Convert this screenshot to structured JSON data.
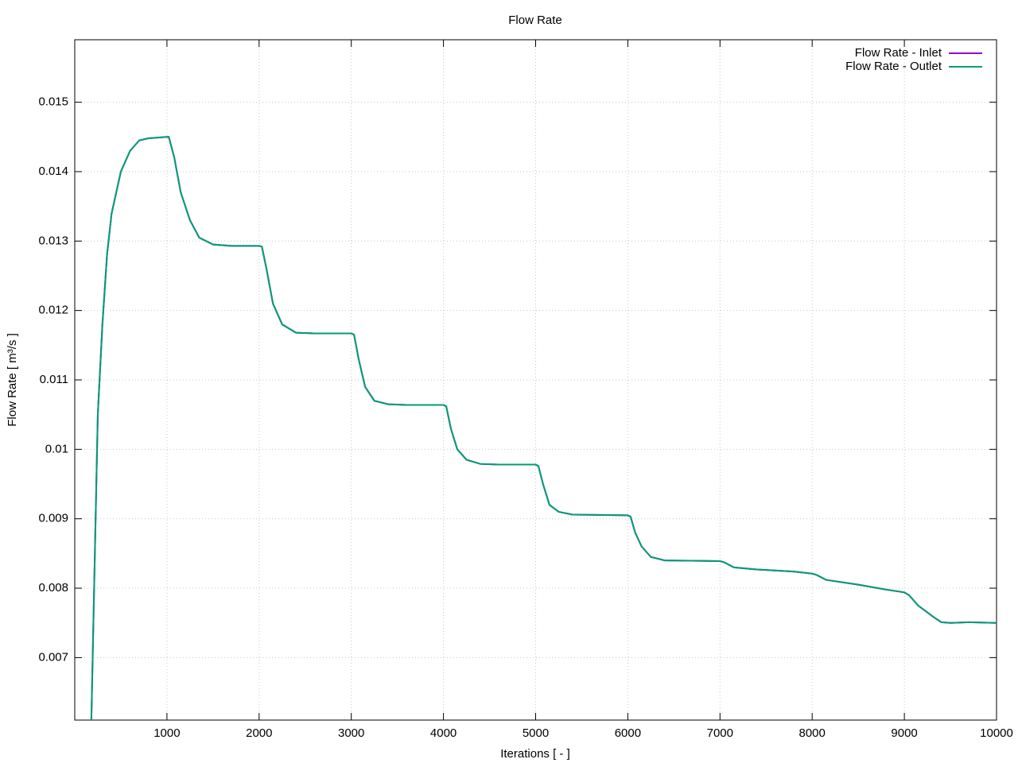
{
  "chart_data": {
    "type": "line",
    "title": "Flow Rate",
    "xlabel": "Iterations [ - ]",
    "ylabel": "Flow Rate [ m³/s ]",
    "x": [
      180,
      250,
      300,
      350,
      400,
      500,
      600,
      700,
      800,
      1000,
      1020,
      1080,
      1150,
      1250,
      1350,
      1500,
      1700,
      2000,
      2030,
      2080,
      2150,
      2250,
      2400,
      2600,
      3000,
      3030,
      3080,
      3150,
      3250,
      3400,
      3600,
      4000,
      4030,
      4080,
      4150,
      4250,
      4400,
      4600,
      5000,
      5030,
      5080,
      5150,
      5250,
      5400,
      6000,
      6030,
      6080,
      6150,
      6250,
      6400,
      7000,
      7050,
      7150,
      7400,
      7800,
      8000,
      8050,
      8150,
      8500,
      8800,
      9000,
      9050,
      9150,
      9300,
      9400,
      9500,
      9700,
      10000
    ],
    "series": [
      {
        "name": "Flow Rate - Inlet",
        "color": "#9400d3",
        "values": [
          0.0061,
          0.0105,
          0.0118,
          0.0128,
          0.0134,
          0.014,
          0.0143,
          0.01445,
          0.01448,
          0.0145,
          0.0145,
          0.0142,
          0.0137,
          0.0133,
          0.01305,
          0.01295,
          0.01293,
          0.01293,
          0.01292,
          0.0126,
          0.0121,
          0.0118,
          0.01168,
          0.01167,
          0.01167,
          0.01165,
          0.0113,
          0.0109,
          0.0107,
          0.01065,
          0.01064,
          0.01064,
          0.01062,
          0.0103,
          0.01,
          0.00985,
          0.00979,
          0.00978,
          0.00978,
          0.00976,
          0.0095,
          0.0092,
          0.0091,
          0.00906,
          0.00905,
          0.00903,
          0.0088,
          0.0086,
          0.00845,
          0.0084,
          0.00839,
          0.00837,
          0.0083,
          0.00827,
          0.00824,
          0.00821,
          0.00819,
          0.00812,
          0.00805,
          0.00798,
          0.00794,
          0.0079,
          0.00775,
          0.0076,
          0.00751,
          0.0075,
          0.00751,
          0.0075
        ]
      },
      {
        "name": "Flow Rate - Outlet",
        "color": "#009e73",
        "values": [
          0.0061,
          0.0105,
          0.0118,
          0.0128,
          0.0134,
          0.014,
          0.0143,
          0.01445,
          0.01448,
          0.0145,
          0.0145,
          0.0142,
          0.0137,
          0.0133,
          0.01305,
          0.01295,
          0.01293,
          0.01293,
          0.01292,
          0.0126,
          0.0121,
          0.0118,
          0.01168,
          0.01167,
          0.01167,
          0.01165,
          0.0113,
          0.0109,
          0.0107,
          0.01065,
          0.01064,
          0.01064,
          0.01062,
          0.0103,
          0.01,
          0.00985,
          0.00979,
          0.00978,
          0.00978,
          0.00976,
          0.0095,
          0.0092,
          0.0091,
          0.00906,
          0.00905,
          0.00903,
          0.0088,
          0.0086,
          0.00845,
          0.0084,
          0.00839,
          0.00837,
          0.0083,
          0.00827,
          0.00824,
          0.00821,
          0.00819,
          0.00812,
          0.00805,
          0.00798,
          0.00794,
          0.0079,
          0.00775,
          0.0076,
          0.00751,
          0.0075,
          0.00751,
          0.0075
        ]
      }
    ],
    "xlim": [
      0,
      10000
    ],
    "xticks": [
      1000,
      2000,
      3000,
      4000,
      5000,
      6000,
      7000,
      8000,
      9000,
      10000
    ],
    "ylim": [
      0.0061,
      0.0159
    ],
    "yticks": [
      0.007,
      0.008,
      0.009,
      0.01,
      0.011,
      0.012,
      0.013,
      0.014,
      0.015
    ],
    "grid": true,
    "legend": "top-right"
  }
}
